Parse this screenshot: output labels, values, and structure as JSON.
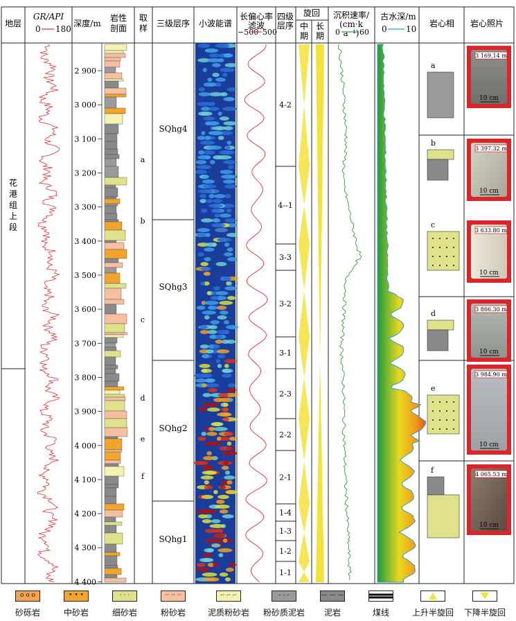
{
  "headers": {
    "strata": "地层",
    "gr_title": "GR/API",
    "gr_scale": [
      "0",
      "180"
    ],
    "depth": "深度/m",
    "lithology": "岩性剖面",
    "sampling": "取样",
    "third_order": "三级层序",
    "wavelet": "小波能谱",
    "eccentricity_title": "长偏心率滤波",
    "ecc_scale": [
      "−500",
      "500"
    ],
    "fourth_order": "四级层序",
    "cycle": "旋回",
    "cycle_mid": "中期",
    "cycle_long": "长期",
    "sed_rate": "沉积速率/(cm·ka⁻¹)",
    "sed_scale": [
      "0",
      "60"
    ],
    "paleo_depth": "古水深/m",
    "paleo_scale": [
      "0",
      "10"
    ],
    "core_facies": "岩心相",
    "core_photo": "岩心照片"
  },
  "strata_label": "花港组上段",
  "depth_ticks": [
    "2 900",
    "3 000",
    "3 100",
    "3 200",
    "3 300",
    "3 400",
    "3 500",
    "3 600",
    "3 700",
    "3 800",
    "3 900",
    "4 000",
    "4 100",
    "4 200",
    "4 300",
    "4 400"
  ],
  "samples": [
    "a",
    "b",
    "c",
    "d",
    "e",
    "f"
  ],
  "third_order": [
    "SQhg4",
    "SQhg3",
    "SQhg2",
    "SQhg1"
  ],
  "fourth_order": [
    "4-2",
    "4--1",
    "3-3",
    "3-2",
    "3-1",
    "2-3",
    "2-2",
    "2-1",
    "1-4",
    "1-3",
    "1-2",
    "1-1"
  ],
  "facies": [
    {
      "label": "a",
      "photo_depth": "3 169.14 m",
      "scale": "10 cm"
    },
    {
      "label": "b",
      "photo_depth": "3 397.32 m",
      "scale": "10 cm"
    },
    {
      "label": "c",
      "photo_depth": "3 633.80 m",
      "scale": "10 cm"
    },
    {
      "label": "d",
      "photo_depth": "3 866.30 m",
      "scale": "10 cm"
    },
    {
      "label": "e",
      "photo_depth": "3 984.90 m",
      "scale": "10 cm"
    },
    {
      "label": "f",
      "photo_depth": "4 065.53 m",
      "scale": "10 cm"
    }
  ],
  "legend": [
    "砂砾岩",
    "中砂岩",
    "细砂岩",
    "粉砂岩",
    "泥质粉砂岩",
    "粉砂质泥岩",
    "泥岩",
    "煤线",
    "上升半旋回",
    "下降半旋回"
  ],
  "colors": {
    "gr_curve": "#e03030",
    "ecc_curve": "#e03030",
    "sed_curve": "#3a9a3a",
    "paleo_edge": "#3399cc",
    "conglomerate": "#f4a24c",
    "medium_sand": "#f2a52c",
    "fine_sand": "#dfe28a",
    "siltstone": "#f6bfa0",
    "muddy_silt": "#f4f2b0",
    "silty_mud": "#9a9a9a",
    "mudstone": "#8a8a8a",
    "cycle_yellow": "#f2e23a"
  }
}
